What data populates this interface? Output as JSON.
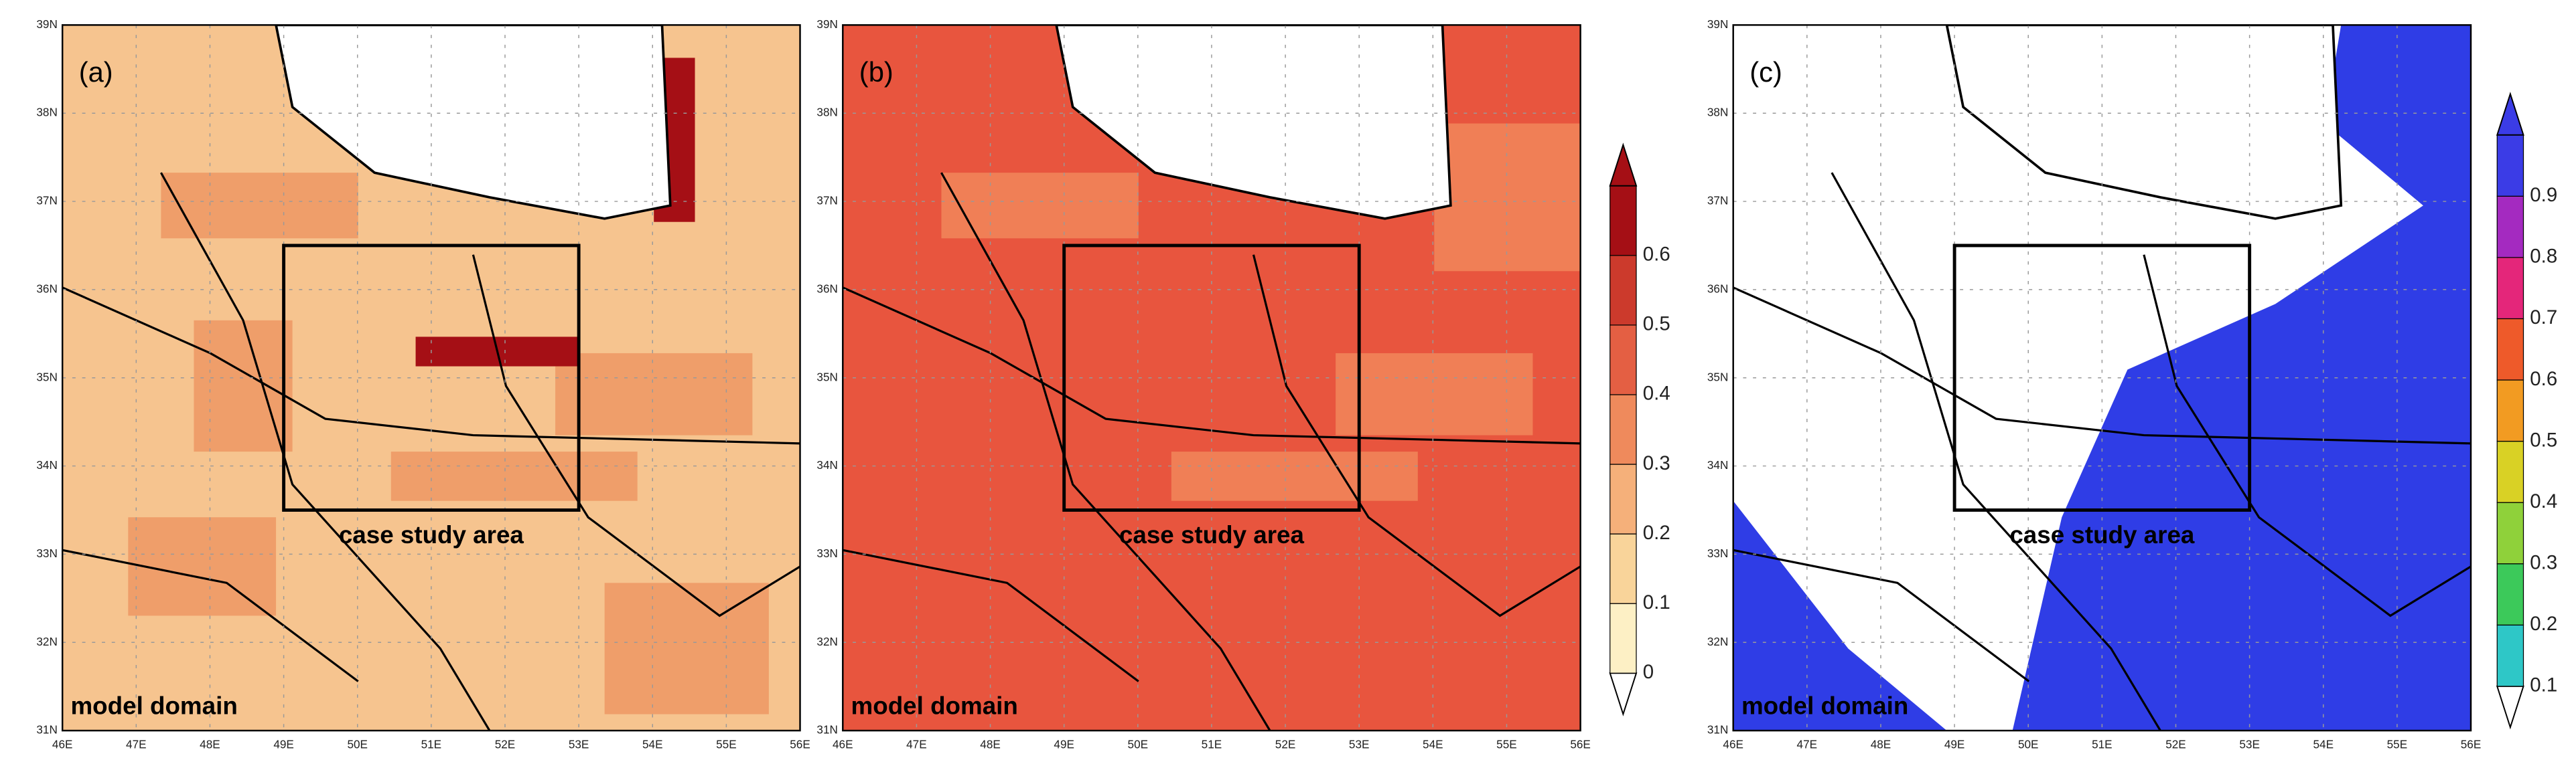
{
  "panels": [
    {
      "label": "(a)",
      "box_label": "case study area",
      "domain_label": "model domain"
    },
    {
      "label": "(b)",
      "box_label": "case study area",
      "domain_label": "model domain"
    },
    {
      "label": "(c)",
      "box_label": "case study area",
      "domain_label": "model domain"
    }
  ],
  "x_tick_labels": [
    "46E",
    "47E",
    "48E",
    "49E",
    "50E",
    "51E",
    "52E",
    "53E",
    "54E",
    "55E",
    "56E"
  ],
  "y_tick_labels": [
    "31N",
    "32N",
    "33N",
    "34N",
    "35N",
    "36N",
    "37N",
    "38N",
    "39N"
  ],
  "colorbars": [
    {
      "ticks": [
        0,
        0.1,
        0.2,
        0.3,
        0.4,
        0.5,
        0.6
      ]
    },
    {
      "ticks": [
        0.1,
        0.2,
        0.3,
        0.4,
        0.5,
        0.6,
        0.7,
        0.8,
        0.9
      ]
    }
  ]
}
